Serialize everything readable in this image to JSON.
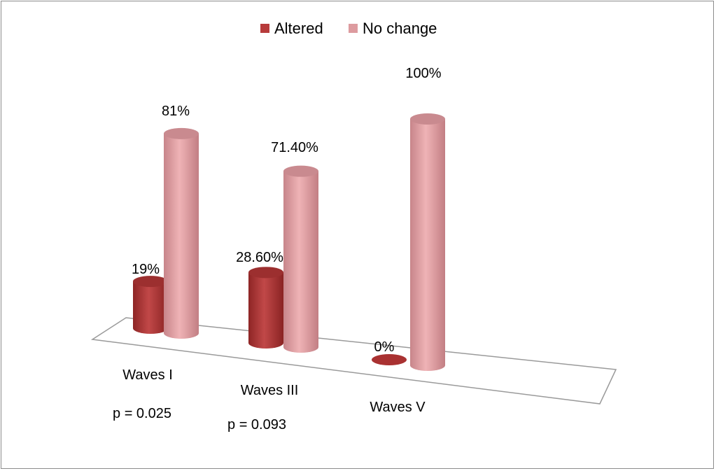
{
  "chart_data": {
    "type": "bar",
    "style": "3d-cylinder",
    "categories": [
      "Waves I",
      "Waves III",
      "Waves V"
    ],
    "series": [
      {
        "name": "Altered",
        "values": [
          19,
          28.6,
          0
        ],
        "labels": [
          "19%",
          "28.60%",
          "0%"
        ],
        "color": "#b73b3b"
      },
      {
        "name": "No change",
        "values": [
          81,
          71.4,
          100
        ],
        "labels": [
          "81%",
          "71.40%",
          "100%"
        ],
        "color": "#dd9b9f"
      }
    ],
    "annotations": [
      "p = 0.025",
      "p = 0.093",
      ""
    ],
    "ylim": [
      0,
      100
    ],
    "grid": false,
    "legend_position": "top-center"
  }
}
